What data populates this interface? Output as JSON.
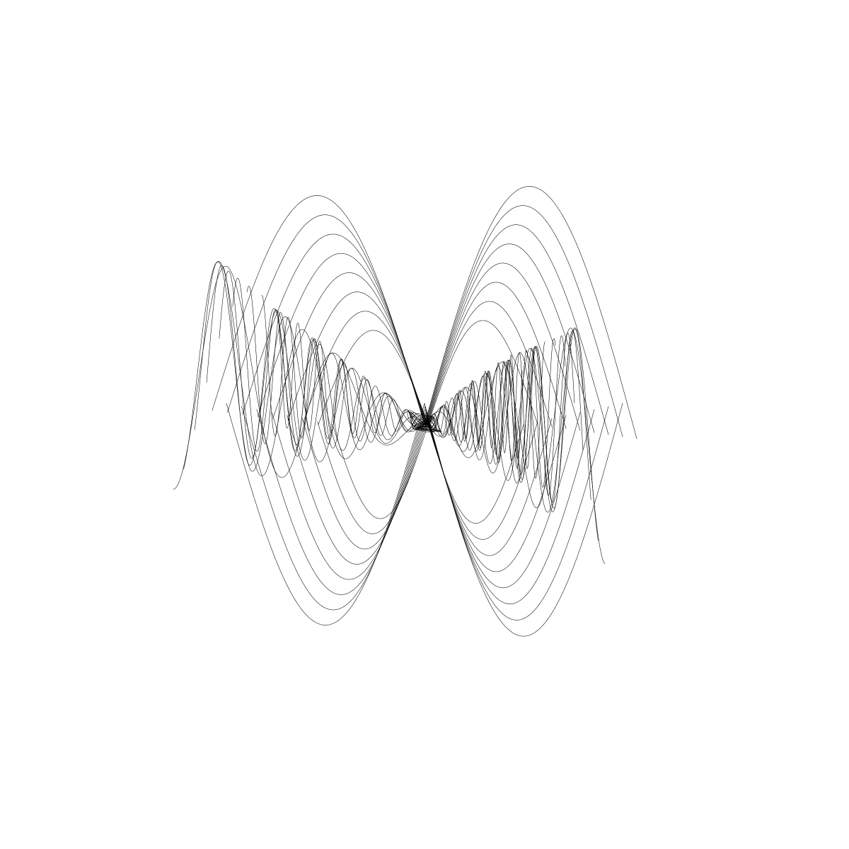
{
  "artwork": {
    "background_color": "#ffffff",
    "stroke_color": "#000000",
    "left_fan_curve_count": 9,
    "right_fan_curve_count": 10,
    "crossing_curve_count": 8
  }
}
